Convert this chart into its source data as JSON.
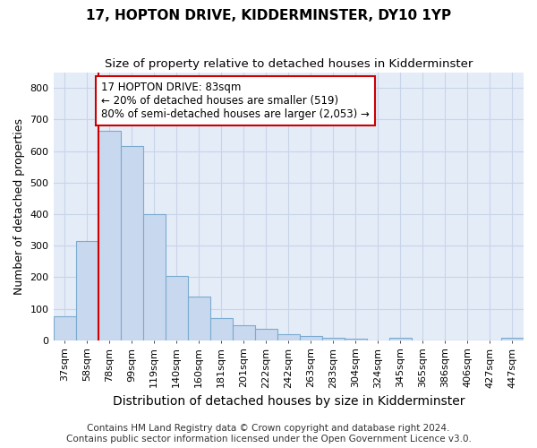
{
  "title": "17, HOPTON DRIVE, KIDDERMINSTER, DY10 1YP",
  "subtitle": "Size of property relative to detached houses in Kidderminster",
  "xlabel": "Distribution of detached houses by size in Kidderminster",
  "ylabel": "Number of detached properties",
  "footer_line1": "Contains HM Land Registry data © Crown copyright and database right 2024.",
  "footer_line2": "Contains public sector information licensed under the Open Government Licence v3.0.",
  "categories": [
    "37sqm",
    "58sqm",
    "78sqm",
    "99sqm",
    "119sqm",
    "140sqm",
    "160sqm",
    "181sqm",
    "201sqm",
    "222sqm",
    "242sqm",
    "263sqm",
    "283sqm",
    "304sqm",
    "324sqm",
    "345sqm",
    "365sqm",
    "386sqm",
    "406sqm",
    "427sqm",
    "447sqm"
  ],
  "values": [
    75,
    315,
    665,
    615,
    400,
    205,
    138,
    70,
    47,
    37,
    20,
    15,
    8,
    5,
    0,
    8,
    0,
    0,
    0,
    0,
    8
  ],
  "bar_color": "#c8d8ee",
  "bar_edge_color": "#7aabcf",
  "red_line_index": 2,
  "annotation_text": "17 HOPTON DRIVE: 83sqm\n← 20% of detached houses are smaller (519)\n80% of semi-detached houses are larger (2,053) →",
  "annotation_box_color": "#ffffff",
  "annotation_box_edge_color": "#cc0000",
  "ylim": [
    0,
    850
  ],
  "yticks": [
    0,
    100,
    200,
    300,
    400,
    500,
    600,
    700,
    800
  ],
  "grid_color": "#c8d4e8",
  "bg_color": "#e4ecf8",
  "title_fontsize": 11,
  "subtitle_fontsize": 9.5,
  "xlabel_fontsize": 10,
  "ylabel_fontsize": 9,
  "tick_fontsize": 8,
  "footer_fontsize": 7.5
}
